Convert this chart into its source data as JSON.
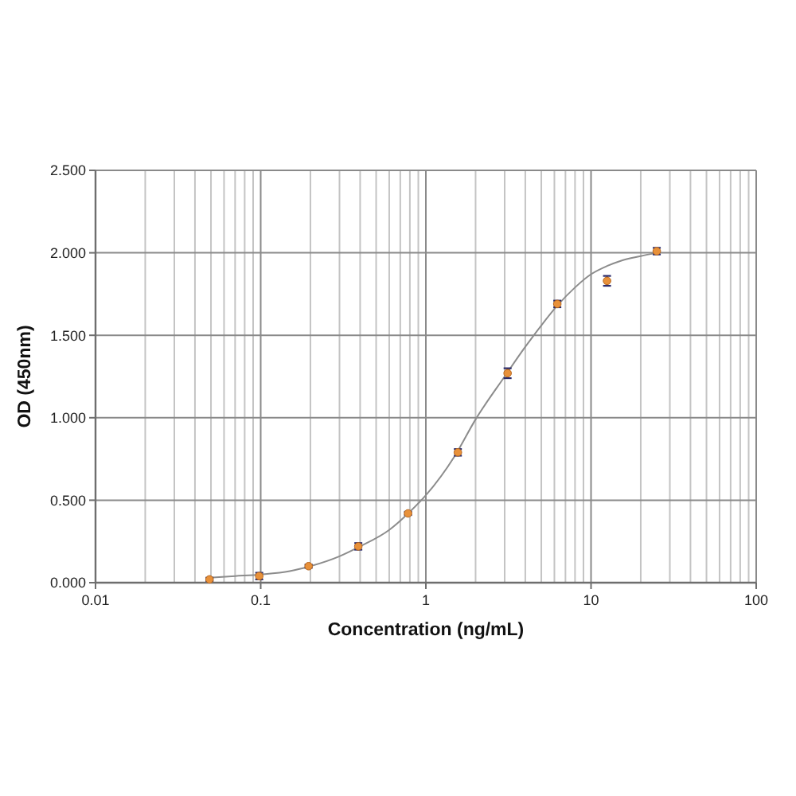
{
  "chart_data": {
    "type": "scatter",
    "xlabel": "Concentration (ng/mL)",
    "ylabel": "OD (450nm)",
    "log": "x",
    "grid": true,
    "marker": "circle",
    "xlim": [
      0.01,
      100
    ],
    "ylim": [
      0,
      2.5
    ],
    "xticks": [
      0.01,
      {
        "value": 0.02,
        "label": null
      },
      {
        "value": 0.03,
        "label": null
      },
      {
        "value": 0.04,
        "label": null
      },
      {
        "value": 0.05,
        "label": null
      },
      {
        "value": 0.06,
        "label": null
      },
      {
        "value": 0.07,
        "label": null
      },
      {
        "value": 0.08,
        "label": null
      },
      {
        "value": 0.09,
        "label": null
      },
      0.1,
      {
        "value": 0.2,
        "label": null
      },
      {
        "value": 0.3,
        "label": null
      },
      {
        "value": 0.4,
        "label": null
      },
      {
        "value": 0.5,
        "label": null
      },
      {
        "value": 0.6,
        "label": null
      },
      {
        "value": 0.7,
        "label": null
      },
      {
        "value": 0.8,
        "label": null
      },
      {
        "value": 0.9,
        "label": null
      },
      1,
      {
        "value": 2,
        "label": null
      },
      {
        "value": 3,
        "label": null
      },
      {
        "value": 4,
        "label": null
      },
      {
        "value": 5,
        "label": null
      },
      {
        "value": 6,
        "label": null
      },
      {
        "value": 7,
        "label": null
      },
      {
        "value": 8,
        "label": null
      },
      {
        "value": 9,
        "label": null
      },
      10,
      {
        "value": 20,
        "label": null
      },
      {
        "value": 30,
        "label": null
      },
      {
        "value": 40,
        "label": null
      },
      {
        "value": 50,
        "label": null
      },
      {
        "value": 60,
        "label": null
      },
      {
        "value": 70,
        "label": null
      },
      {
        "value": 80,
        "label": null
      },
      {
        "value": 90,
        "label": null
      },
      100
    ],
    "yticks": [
      {
        "value": 0,
        "label": "0.000"
      },
      {
        "value": 0.5,
        "label": "0.500"
      },
      {
        "value": 1,
        "label": "1.000"
      },
      {
        "value": 1.5,
        "label": "1.500"
      },
      {
        "value": 2,
        "label": "2.000"
      },
      {
        "value": 2.5,
        "label": "2.500"
      }
    ],
    "series": [
      {
        "type": "line",
        "color": "#8c8c8c",
        "marker": "none",
        "x": [
          0.049,
          0.07,
          0.1,
          0.15,
          0.2,
          0.3,
          0.4,
          0.6,
          0.8,
          1,
          1.5,
          2,
          3,
          4,
          5,
          6.25,
          8,
          10,
          12.5,
          15,
          20,
          25
        ],
        "values": [
          0.03,
          0.04,
          0.05,
          0.07,
          0.1,
          0.16,
          0.22,
          0.32,
          0.43,
          0.53,
          0.77,
          0.99,
          1.25,
          1.43,
          1.56,
          1.68,
          1.79,
          1.87,
          1.92,
          1.95,
          1.98,
          2.0
        ]
      },
      {
        "color": "#e8913a",
        "x": [
          0.049,
          0.098,
          0.195,
          0.39,
          0.78,
          1.5625,
          3.125,
          6.25,
          12.5,
          25
        ],
        "values": [
          0.02,
          0.04,
          0.1,
          0.22,
          0.42,
          0.79,
          1.27,
          1.69,
          1.83,
          2.01
        ],
        "errors": [
          0.01,
          0.02,
          0.01,
          0.02,
          0.01,
          0.02,
          0.03,
          0.02,
          0.03,
          0.02
        ]
      }
    ]
  }
}
